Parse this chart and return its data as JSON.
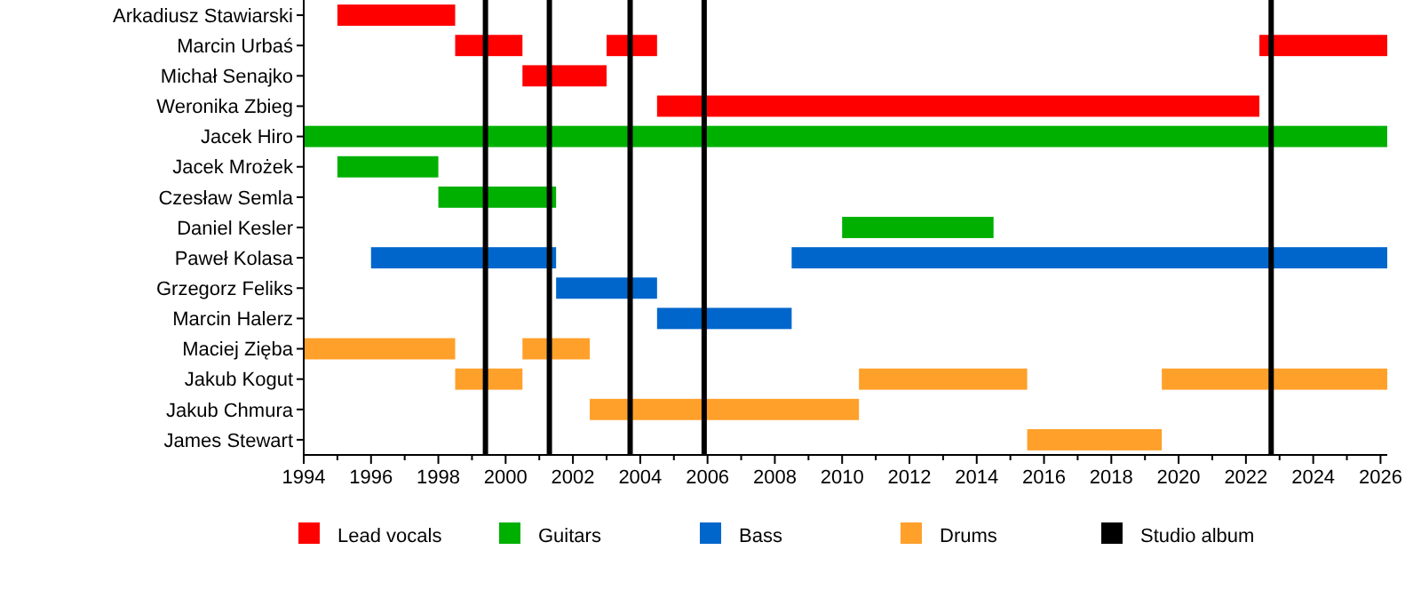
{
  "chart_data": {
    "type": "bar",
    "orientation": "horizontal",
    "categories": [
      "Arkadiusz Stawiarski",
      "Marcin Urbaś",
      "Michał Senajko",
      "Weronika Zbieg",
      "Jacek Hiro",
      "Jacek Mrożek",
      "Czesław Semla",
      "Daniel Kesler",
      "Paweł Kolasa",
      "Grzegorz Feliks",
      "Marcin Halerz",
      "Maciej Zięba",
      "Jakub Kogut",
      "Jakub Chmura",
      "James Stewart"
    ],
    "series": [
      {
        "name": "Lead vocals",
        "color": "#ff0000",
        "base": [
          1995,
          1998.5,
          2000.5,
          2004.5,
          null,
          null,
          null,
          null,
          null,
          null,
          null,
          null,
          null,
          null,
          null
        ],
        "values": [
          3.5,
          2,
          2.5,
          17.9,
          null,
          null,
          null,
          null,
          null,
          null,
          null,
          null,
          null,
          null,
          null
        ]
      },
      {
        "color": "#ff0000",
        "base": [
          null,
          2003,
          null,
          null,
          null,
          null,
          null,
          null,
          null,
          null,
          null,
          null,
          null,
          null,
          null
        ],
        "values": [
          null,
          1.5,
          null,
          null,
          null,
          null,
          null,
          null,
          null,
          null,
          null,
          null,
          null,
          null,
          null
        ]
      },
      {
        "color": "#ff0000",
        "base": [
          null,
          2022.4,
          null,
          null,
          null,
          null,
          null,
          null,
          null,
          null,
          null,
          null,
          null,
          null,
          null
        ],
        "values": [
          null,
          3.8,
          null,
          null,
          null,
          null,
          null,
          null,
          null,
          null,
          null,
          null,
          null,
          null,
          null
        ]
      },
      {
        "name": "Guitars",
        "color": "#00b000",
        "base": [
          null,
          null,
          null,
          null,
          1994,
          1995,
          1998,
          2010,
          null,
          null,
          null,
          null,
          null,
          null,
          null
        ],
        "values": [
          null,
          null,
          null,
          null,
          32.2,
          3,
          3.5,
          4.5,
          null,
          null,
          null,
          null,
          null,
          null,
          null
        ]
      },
      {
        "name": "Bass",
        "color": "#0066cc",
        "base": [
          null,
          null,
          null,
          null,
          null,
          null,
          null,
          null,
          1996,
          2001.5,
          2004.5,
          null,
          null,
          null,
          null
        ],
        "values": [
          null,
          null,
          null,
          null,
          null,
          null,
          null,
          null,
          5.5,
          3,
          4,
          null,
          null,
          null,
          null
        ]
      },
      {
        "color": "#0066cc",
        "base": [
          null,
          null,
          null,
          null,
          null,
          null,
          null,
          null,
          2008.5,
          null,
          null,
          null,
          null,
          null,
          null
        ],
        "values": [
          null,
          null,
          null,
          null,
          null,
          null,
          null,
          null,
          17.7,
          null,
          null,
          null,
          null,
          null,
          null
        ]
      },
      {
        "name": "Drums",
        "color": "#ffa02a",
        "base": [
          null,
          null,
          null,
          null,
          null,
          null,
          null,
          null,
          null,
          null,
          null,
          1994,
          1998.5,
          2002.5,
          2015.5
        ],
        "values": [
          null,
          null,
          null,
          null,
          null,
          null,
          null,
          null,
          null,
          null,
          null,
          4.5,
          2,
          8,
          4
        ]
      },
      {
        "color": "#ffa02a",
        "base": [
          null,
          null,
          null,
          null,
          null,
          null,
          null,
          null,
          null,
          null,
          null,
          2000.5,
          2010.5,
          null,
          null
        ],
        "values": [
          null,
          null,
          null,
          null,
          null,
          null,
          null,
          null,
          null,
          null,
          null,
          2,
          5,
          null,
          null
        ]
      },
      {
        "color": "#ffa02a",
        "base": [
          null,
          null,
          null,
          null,
          null,
          null,
          null,
          null,
          null,
          null,
          null,
          null,
          2019.5,
          null,
          null
        ],
        "values": [
          null,
          null,
          null,
          null,
          null,
          null,
          null,
          null,
          null,
          null,
          null,
          null,
          6.7,
          null,
          null
        ]
      }
    ],
    "ref_lines": [
      {
        "axis": "x",
        "value": 1999.4,
        "label": "Studio album",
        "color": "#000000"
      },
      {
        "axis": "x",
        "value": 2001.3,
        "color": "#000000"
      },
      {
        "axis": "x",
        "value": 2003.7,
        "color": "#000000"
      },
      {
        "axis": "x",
        "value": 2005.9,
        "color": "#000000"
      },
      {
        "axis": "x",
        "value": 2022.75,
        "color": "#000000"
      }
    ],
    "xlim": [
      1994,
      2026.2
    ],
    "xticks": [
      1994,
      {
        "value": 1995,
        "label": null
      },
      1996,
      {
        "value": 1997,
        "label": null
      },
      1998,
      {
        "value": 1999,
        "label": null
      },
      2000,
      {
        "value": 2001,
        "label": null
      },
      2002,
      {
        "value": 2003,
        "label": null
      },
      2004,
      {
        "value": 2005,
        "label": null
      },
      2006,
      {
        "value": 2007,
        "label": null
      },
      2008,
      {
        "value": 2009,
        "label": null
      },
      2010,
      {
        "value": 2011,
        "label": null
      },
      2012,
      {
        "value": 2013,
        "label": null
      },
      2014,
      {
        "value": 2015,
        "label": null
      },
      2016,
      {
        "value": 2017,
        "label": null
      },
      2018,
      {
        "value": 2019,
        "label": null
      },
      2020,
      {
        "value": 2021,
        "label": null
      },
      2022,
      {
        "value": 2023,
        "label": null
      },
      2024,
      {
        "value": 2025,
        "label": null
      },
      2026
    ],
    "grid": false,
    "legend": "bottom"
  }
}
